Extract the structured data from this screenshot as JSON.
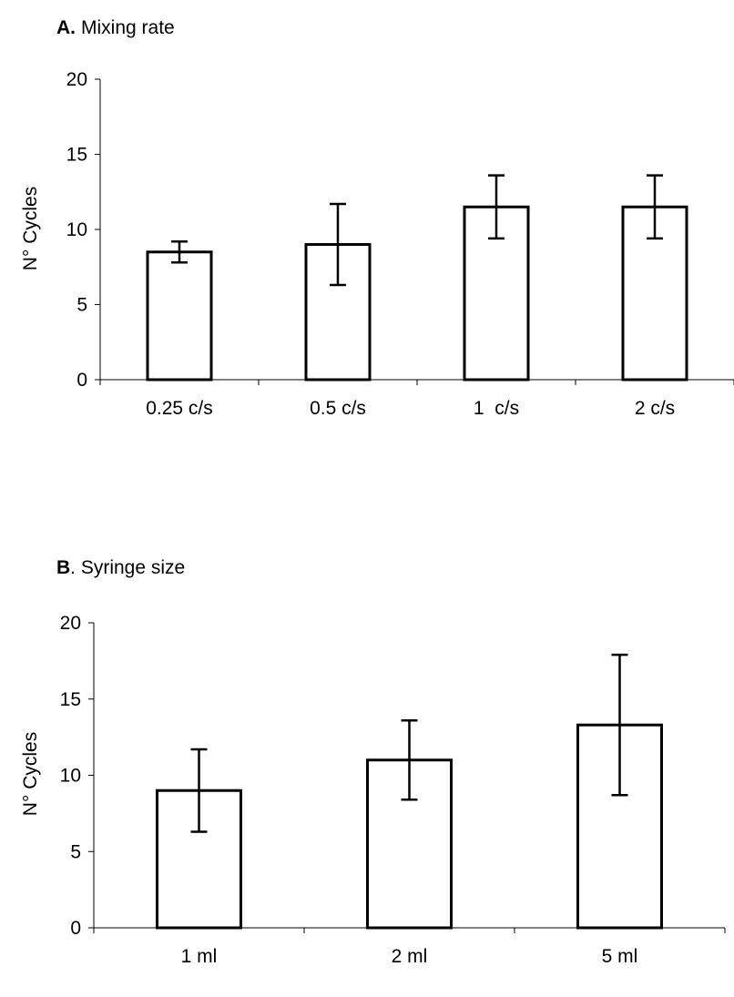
{
  "chart_data": [
    {
      "type": "bar",
      "panel_label": "A.",
      "title": "Mixing rate",
      "ylabel": "N° Cycles",
      "xlabel": "",
      "ylim": [
        0,
        20
      ],
      "yticks": [
        0,
        5,
        10,
        15,
        20
      ],
      "categories": [
        "0.25 c/s",
        "0.5 c/s",
        "1  c/s",
        "2 c/s"
      ],
      "values": [
        8.5,
        9.0,
        11.5,
        11.5
      ],
      "errors": [
        0.7,
        2.7,
        2.1,
        2.1
      ],
      "grid": false
    },
    {
      "type": "bar",
      "panel_label": "B",
      "title": ". Syringe size",
      "ylabel": "N° Cycles",
      "xlabel": "",
      "ylim": [
        0,
        20
      ],
      "yticks": [
        0,
        5,
        10,
        15,
        20
      ],
      "categories": [
        "1 ml",
        "2 ml",
        "5 ml"
      ],
      "values": [
        9.0,
        11.0,
        13.3
      ],
      "errors": [
        2.7,
        2.6,
        4.6
      ],
      "grid": false
    }
  ]
}
